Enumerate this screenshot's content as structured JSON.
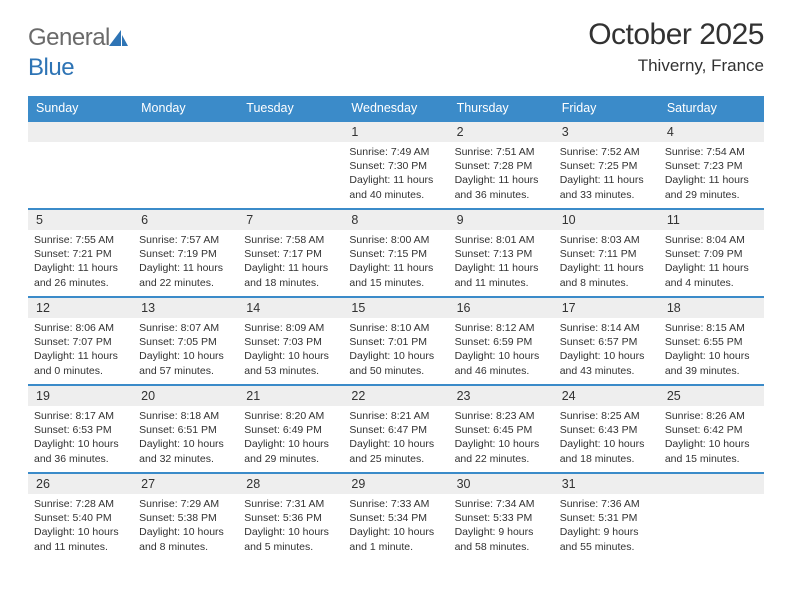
{
  "logo": {
    "text1": "General",
    "text2": "Blue"
  },
  "title": "October 2025",
  "location": "Thiverny, France",
  "colors": {
    "header_bg": "#3b8bc9",
    "header_fg": "#ffffff",
    "dayhead_bg": "#eeeeee",
    "rule": "#3b8bc9",
    "logo_gray": "#6a6a6a",
    "logo_blue": "#2e74b5"
  },
  "weekdays": [
    "Sunday",
    "Monday",
    "Tuesday",
    "Wednesday",
    "Thursday",
    "Friday",
    "Saturday"
  ],
  "weeks": [
    [
      null,
      null,
      null,
      {
        "n": "1",
        "sr": "7:49 AM",
        "ss": "7:30 PM",
        "dl": "11 hours and 40 minutes."
      },
      {
        "n": "2",
        "sr": "7:51 AM",
        "ss": "7:28 PM",
        "dl": "11 hours and 36 minutes."
      },
      {
        "n": "3",
        "sr": "7:52 AM",
        "ss": "7:25 PM",
        "dl": "11 hours and 33 minutes."
      },
      {
        "n": "4",
        "sr": "7:54 AM",
        "ss": "7:23 PM",
        "dl": "11 hours and 29 minutes."
      }
    ],
    [
      {
        "n": "5",
        "sr": "7:55 AM",
        "ss": "7:21 PM",
        "dl": "11 hours and 26 minutes."
      },
      {
        "n": "6",
        "sr": "7:57 AM",
        "ss": "7:19 PM",
        "dl": "11 hours and 22 minutes."
      },
      {
        "n": "7",
        "sr": "7:58 AM",
        "ss": "7:17 PM",
        "dl": "11 hours and 18 minutes."
      },
      {
        "n": "8",
        "sr": "8:00 AM",
        "ss": "7:15 PM",
        "dl": "11 hours and 15 minutes."
      },
      {
        "n": "9",
        "sr": "8:01 AM",
        "ss": "7:13 PM",
        "dl": "11 hours and 11 minutes."
      },
      {
        "n": "10",
        "sr": "8:03 AM",
        "ss": "7:11 PM",
        "dl": "11 hours and 8 minutes."
      },
      {
        "n": "11",
        "sr": "8:04 AM",
        "ss": "7:09 PM",
        "dl": "11 hours and 4 minutes."
      }
    ],
    [
      {
        "n": "12",
        "sr": "8:06 AM",
        "ss": "7:07 PM",
        "dl": "11 hours and 0 minutes."
      },
      {
        "n": "13",
        "sr": "8:07 AM",
        "ss": "7:05 PM",
        "dl": "10 hours and 57 minutes."
      },
      {
        "n": "14",
        "sr": "8:09 AM",
        "ss": "7:03 PM",
        "dl": "10 hours and 53 minutes."
      },
      {
        "n": "15",
        "sr": "8:10 AM",
        "ss": "7:01 PM",
        "dl": "10 hours and 50 minutes."
      },
      {
        "n": "16",
        "sr": "8:12 AM",
        "ss": "6:59 PM",
        "dl": "10 hours and 46 minutes."
      },
      {
        "n": "17",
        "sr": "8:14 AM",
        "ss": "6:57 PM",
        "dl": "10 hours and 43 minutes."
      },
      {
        "n": "18",
        "sr": "8:15 AM",
        "ss": "6:55 PM",
        "dl": "10 hours and 39 minutes."
      }
    ],
    [
      {
        "n": "19",
        "sr": "8:17 AM",
        "ss": "6:53 PM",
        "dl": "10 hours and 36 minutes."
      },
      {
        "n": "20",
        "sr": "8:18 AM",
        "ss": "6:51 PM",
        "dl": "10 hours and 32 minutes."
      },
      {
        "n": "21",
        "sr": "8:20 AM",
        "ss": "6:49 PM",
        "dl": "10 hours and 29 minutes."
      },
      {
        "n": "22",
        "sr": "8:21 AM",
        "ss": "6:47 PM",
        "dl": "10 hours and 25 minutes."
      },
      {
        "n": "23",
        "sr": "8:23 AM",
        "ss": "6:45 PM",
        "dl": "10 hours and 22 minutes."
      },
      {
        "n": "24",
        "sr": "8:25 AM",
        "ss": "6:43 PM",
        "dl": "10 hours and 18 minutes."
      },
      {
        "n": "25",
        "sr": "8:26 AM",
        "ss": "6:42 PM",
        "dl": "10 hours and 15 minutes."
      }
    ],
    [
      {
        "n": "26",
        "sr": "7:28 AM",
        "ss": "5:40 PM",
        "dl": "10 hours and 11 minutes."
      },
      {
        "n": "27",
        "sr": "7:29 AM",
        "ss": "5:38 PM",
        "dl": "10 hours and 8 minutes."
      },
      {
        "n": "28",
        "sr": "7:31 AM",
        "ss": "5:36 PM",
        "dl": "10 hours and 5 minutes."
      },
      {
        "n": "29",
        "sr": "7:33 AM",
        "ss": "5:34 PM",
        "dl": "10 hours and 1 minute."
      },
      {
        "n": "30",
        "sr": "7:34 AM",
        "ss": "5:33 PM",
        "dl": "9 hours and 58 minutes."
      },
      {
        "n": "31",
        "sr": "7:36 AM",
        "ss": "5:31 PM",
        "dl": "9 hours and 55 minutes."
      },
      null
    ]
  ],
  "labels": {
    "sunrise": "Sunrise:",
    "sunset": "Sunset:",
    "daylight": "Daylight:"
  }
}
